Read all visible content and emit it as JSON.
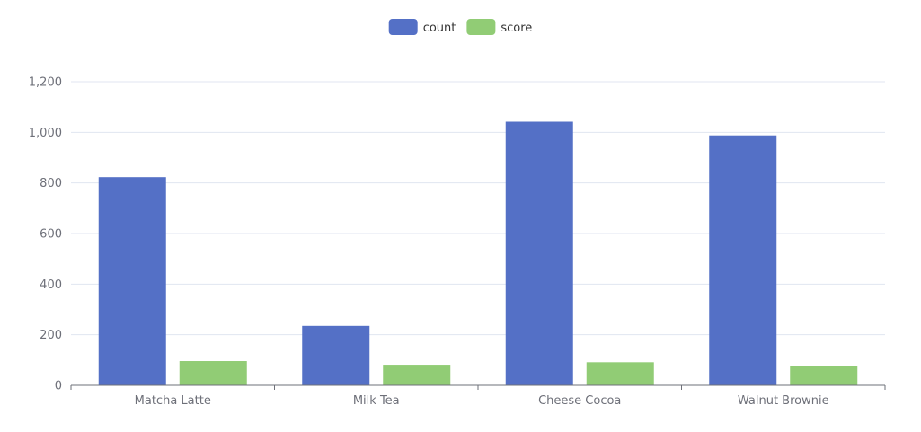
{
  "chart_data": {
    "type": "bar",
    "categories": [
      "Matcha Latte",
      "Milk Tea",
      "Cheese Cocoa",
      "Walnut Brownie"
    ],
    "series": [
      {
        "name": "count",
        "color": "#5470c6",
        "values": [
          823,
          235,
          1042,
          988
        ]
      },
      {
        "name": "score",
        "color": "#91cc75",
        "values": [
          95.8,
          81.4,
          91.2,
          76.9
        ]
      }
    ],
    "ylim": [
      0,
      1200
    ],
    "yticks": [
      "0",
      "200",
      "400",
      "600",
      "800",
      "1,000",
      "1,200"
    ],
    "ytick_values": [
      0,
      200,
      400,
      600,
      800,
      1000,
      1200
    ],
    "grid": true,
    "legend_position": "top-center"
  }
}
